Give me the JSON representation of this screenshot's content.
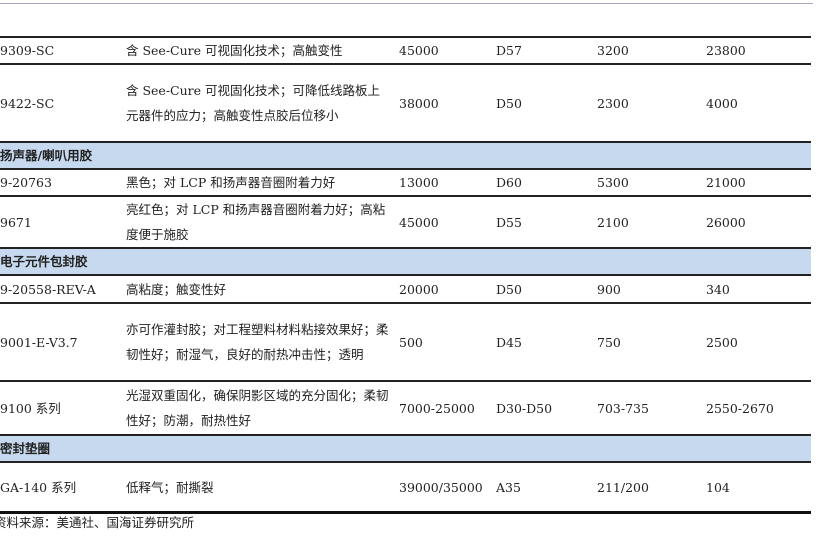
{
  "rows": [
    {
      "type": "item",
      "model": "9309-SC",
      "desc": "含 See-Cure 可视固化技术；高触变性",
      "viscosity": "45000",
      "hardness": "D57",
      "c5": "3200",
      "c6": "23800"
    },
    {
      "type": "item",
      "model": "9422-SC",
      "desc": "含 See-Cure 可视固化技术；可降低线路板上元器件的应力；高触变性点胶后位移小",
      "viscosity": "38000",
      "hardness": "D50",
      "c5": "2300",
      "c6": "4000"
    },
    {
      "type": "category",
      "label": "扬声器/喇叭用胶"
    },
    {
      "type": "item",
      "model": "9-20763",
      "desc": "黑色；对 LCP 和扬声器音圈附着力好",
      "viscosity": "13000",
      "hardness": "D60",
      "c5": "5300",
      "c6": "21000"
    },
    {
      "type": "item",
      "model": "9671",
      "desc": "亮红色；对 LCP 和扬声器音圈附着力好；高粘度便于施胶",
      "viscosity": "45000",
      "hardness": "D55",
      "c5": "2100",
      "c6": "26000"
    },
    {
      "type": "category",
      "label": "电子元件包封胶"
    },
    {
      "type": "item",
      "model": "9-20558-REV-A",
      "desc": "高粘度；触变性好",
      "viscosity": "20000",
      "hardness": "D50",
      "c5": "900",
      "c6": "340"
    },
    {
      "type": "item",
      "model": "9001-E-V3.7",
      "desc": "亦可作灌封胶；对工程塑料材料粘接效果好；柔韧性好；耐湿气，良好的耐热冲击性；透明",
      "viscosity": "500",
      "hardness": "D45",
      "c5": "750",
      "c6": "2500"
    },
    {
      "type": "item",
      "model": "9100 系列",
      "desc": "光湿双重固化，确保阴影区域的充分固化；柔韧性好；防潮，耐热性好",
      "viscosity": "7000-25000",
      "hardness": "D30-D50",
      "c5": "703-735",
      "c6": "2550-2670"
    },
    {
      "type": "category",
      "label": "密封垫圈"
    },
    {
      "type": "item",
      "model": "GA-140 系列",
      "desc": "低释气；耐撕裂",
      "viscosity": "39000/35000",
      "hardness": "A35",
      "c5": "211/200",
      "c6": "104"
    }
  ],
  "source": "资料来源：美通社、国海证券研究所",
  "colors": {
    "category_bg": "#c6d9ee",
    "top_rule": "#a6a8cc"
  }
}
